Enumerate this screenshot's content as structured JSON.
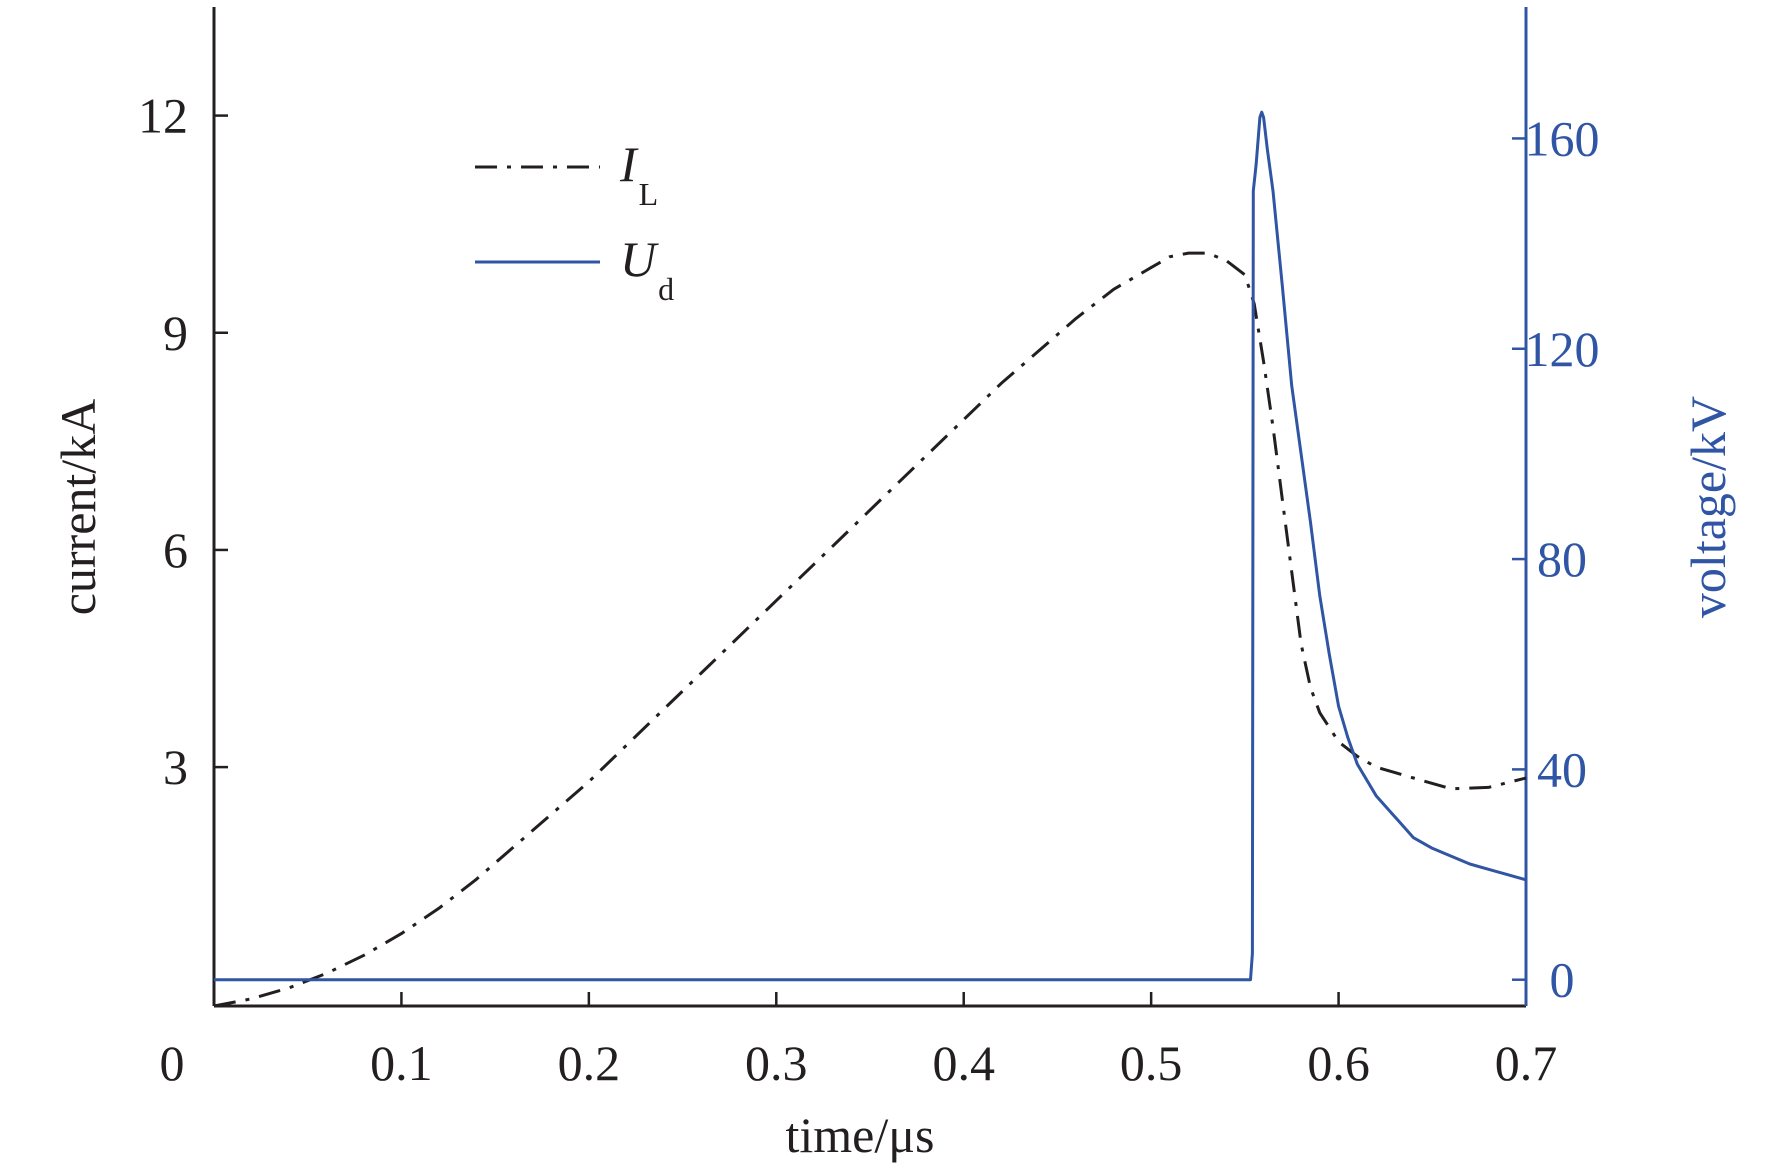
{
  "chart_data": {
    "type": "line",
    "xlabel": "time/μs",
    "ylabel_left": "current/kA",
    "ylabel_right": "voltage/kV",
    "xlim": [
      0,
      0.7
    ],
    "ylim_left": [
      -0.3,
      13.5
    ],
    "ylim_right": [
      -5,
      185
    ],
    "x_ticks": [
      "0",
      "0.1",
      "0.2",
      "0.3",
      "0.4",
      "0.5",
      "0.6",
      "0.7"
    ],
    "x_tick_values": [
      0,
      0.1,
      0.2,
      0.3,
      0.4,
      0.5,
      0.6,
      0.7
    ],
    "left_ticks": [
      "3",
      "6",
      "9",
      "12"
    ],
    "left_tick_values": [
      3,
      6,
      9,
      12
    ],
    "right_ticks": [
      "0",
      "40",
      "80",
      "120",
      "160"
    ],
    "right_tick_values": [
      0,
      40,
      80,
      120,
      160
    ],
    "grid": false,
    "legend_position": "top-left",
    "series": [
      {
        "name": "I",
        "subscript": "L",
        "axis": "left",
        "style": "dash-dot",
        "color": "#231f20",
        "points": [
          [
            0.0,
            -0.3
          ],
          [
            0.02,
            -0.2
          ],
          [
            0.04,
            -0.05
          ],
          [
            0.06,
            0.15
          ],
          [
            0.08,
            0.4
          ],
          [
            0.1,
            0.7
          ],
          [
            0.12,
            1.05
          ],
          [
            0.14,
            1.45
          ],
          [
            0.16,
            1.9
          ],
          [
            0.18,
            2.35
          ],
          [
            0.2,
            2.8
          ],
          [
            0.22,
            3.3
          ],
          [
            0.24,
            3.8
          ],
          [
            0.26,
            4.3
          ],
          [
            0.28,
            4.8
          ],
          [
            0.3,
            5.3
          ],
          [
            0.32,
            5.8
          ],
          [
            0.34,
            6.3
          ],
          [
            0.36,
            6.8
          ],
          [
            0.38,
            7.3
          ],
          [
            0.4,
            7.8
          ],
          [
            0.42,
            8.3
          ],
          [
            0.44,
            8.75
          ],
          [
            0.46,
            9.2
          ],
          [
            0.48,
            9.6
          ],
          [
            0.5,
            9.9
          ],
          [
            0.51,
            10.05
          ],
          [
            0.52,
            10.1
          ],
          [
            0.53,
            10.1
          ],
          [
            0.54,
            10.0
          ],
          [
            0.55,
            9.8
          ],
          [
            0.555,
            9.4
          ],
          [
            0.56,
            8.6
          ],
          [
            0.565,
            7.7
          ],
          [
            0.57,
            6.7
          ],
          [
            0.575,
            5.7
          ],
          [
            0.58,
            4.7
          ],
          [
            0.585,
            4.1
          ],
          [
            0.59,
            3.75
          ],
          [
            0.6,
            3.35
          ],
          [
            0.61,
            3.15
          ],
          [
            0.62,
            3.0
          ],
          [
            0.64,
            2.85
          ],
          [
            0.66,
            2.7
          ],
          [
            0.68,
            2.72
          ],
          [
            0.7,
            2.85
          ]
        ]
      },
      {
        "name": "U",
        "subscript": "d",
        "axis": "right",
        "style": "solid",
        "color": "#2f55a4",
        "points": [
          [
            0.0,
            0
          ],
          [
            0.553,
            0
          ],
          [
            0.554,
            5
          ],
          [
            0.5545,
            150
          ],
          [
            0.556,
            155
          ],
          [
            0.558,
            164
          ],
          [
            0.559,
            165
          ],
          [
            0.56,
            164
          ],
          [
            0.562,
            158
          ],
          [
            0.565,
            150
          ],
          [
            0.57,
            132
          ],
          [
            0.575,
            113
          ],
          [
            0.58,
            100
          ],
          [
            0.585,
            87
          ],
          [
            0.59,
            73
          ],
          [
            0.595,
            62
          ],
          [
            0.6,
            52
          ],
          [
            0.605,
            46
          ],
          [
            0.61,
            41
          ],
          [
            0.62,
            35
          ],
          [
            0.63,
            31
          ],
          [
            0.64,
            27
          ],
          [
            0.65,
            25
          ],
          [
            0.66,
            23.5
          ],
          [
            0.67,
            22
          ],
          [
            0.68,
            21
          ],
          [
            0.69,
            20
          ],
          [
            0.7,
            19
          ]
        ]
      }
    ]
  }
}
